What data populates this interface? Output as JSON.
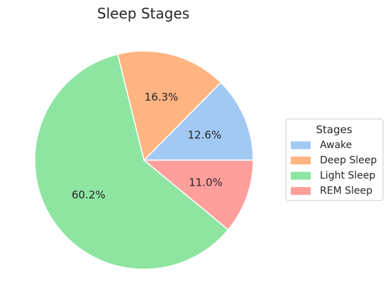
{
  "chart_data": {
    "type": "pie",
    "title": "Sleep Stages",
    "labels": [
      "Awake",
      "Deep Sleep",
      "Light Sleep",
      "REM Sleep"
    ],
    "values": [
      12.6,
      16.3,
      60.2,
      11.0
    ],
    "value_labels": [
      "12.6%",
      "16.3%",
      "60.2%",
      "11.0%"
    ],
    "colors": [
      "#a1c9f4",
      "#ffb482",
      "#8de5a1",
      "#ff9f9b"
    ],
    "start_angle_deg": 0,
    "direction": "counterclockwise",
    "legend": {
      "title": "Stages",
      "placement": "right"
    }
  }
}
